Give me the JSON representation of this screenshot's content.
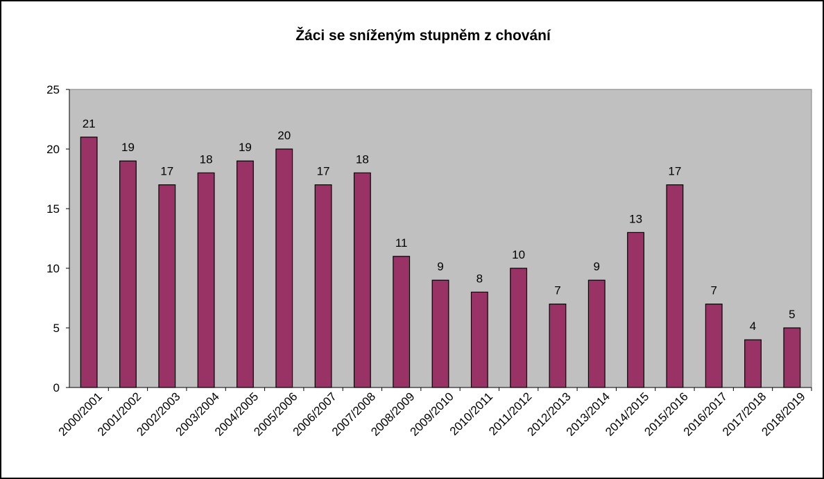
{
  "chart_data": {
    "type": "bar",
    "title": "Žáci se sníženým stupněm z chování",
    "categories": [
      "2000/2001",
      "2001/2002",
      "2002/2003",
      "2003/2004",
      "2004/2005",
      "2005/2006",
      "2006/2007",
      "2007/2008",
      "2008/2009",
      "2009/2010",
      "2010/2011",
      "2011/2012",
      "2012/2013",
      "2013/2014",
      "2014/2015",
      "2015/2016",
      "2016/2017",
      "2017/2018",
      "2018/2019"
    ],
    "values": [
      21,
      19,
      17,
      18,
      19,
      20,
      17,
      18,
      11,
      9,
      8,
      10,
      7,
      9,
      13,
      17,
      7,
      4,
      5
    ],
    "color": "#993366",
    "ylim": [
      0,
      25
    ],
    "yticks": [
      0,
      5,
      10,
      15,
      20,
      25
    ],
    "grid": false
  }
}
